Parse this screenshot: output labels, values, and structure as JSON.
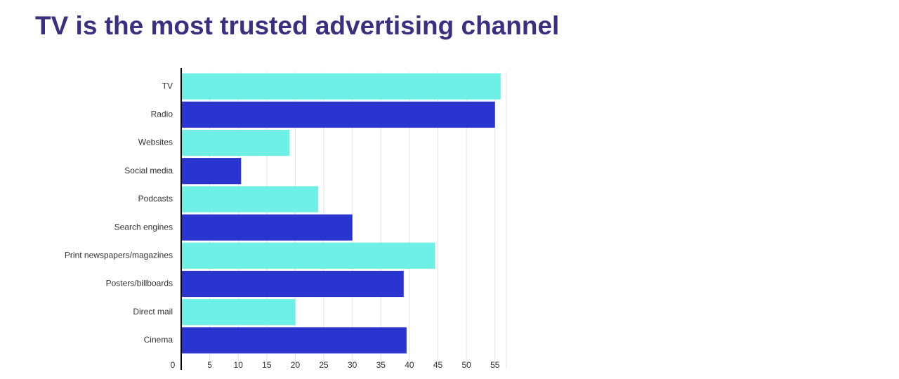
{
  "chart_data": {
    "type": "hbar",
    "title": "TV is the most trusted advertising channel",
    "categories": [
      "TV",
      "Radio",
      "Websites",
      "Social media",
      "Podcasts",
      "Search engines",
      "Print newspapers/magazines",
      "Posters/billboards",
      "Direct mail",
      "Cinema"
    ],
    "values": [
      56,
      55,
      19,
      10.5,
      24,
      30,
      44.5,
      39,
      20,
      39.5
    ],
    "colors": [
      "#6ef0e6",
      "#2a35d0",
      "#6ef0e6",
      "#2a35d0",
      "#6ef0e6",
      "#2a35d0",
      "#6ef0e6",
      "#2a35d0",
      "#6ef0e6",
      "#2a35d0"
    ],
    "xlim": [
      0,
      57
    ],
    "xticks": [
      0,
      5,
      10,
      15,
      20,
      25,
      30,
      35,
      40,
      45,
      50,
      55
    ],
    "grid": true
  }
}
